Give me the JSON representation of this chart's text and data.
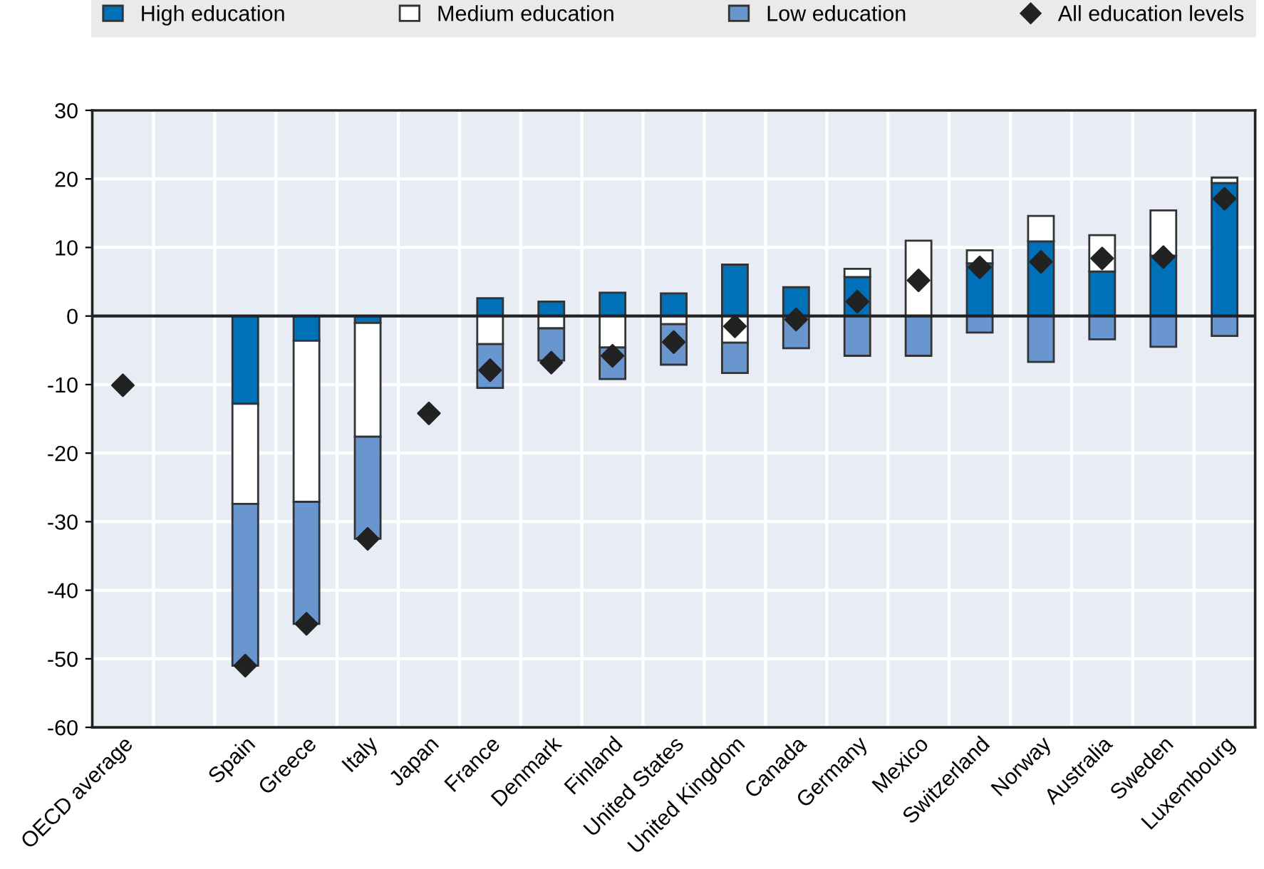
{
  "chart_data": {
    "type": "bar",
    "stacked": true,
    "categories": [
      "OECD average",
      null,
      "Spain",
      "Greece",
      "Italy",
      "Japan",
      "France",
      "Denmark",
      "Finland",
      "United States",
      "United Kingdom",
      "Canada",
      "Germany",
      "Mexico",
      "Switzerland",
      "Norway",
      "Australia",
      "Sweden",
      "Luxembourg"
    ],
    "series": [
      {
        "name": "High education",
        "color": "#0070b8",
        "values": [
          null,
          null,
          -12.8,
          -3.6,
          -1.0,
          null,
          2.6,
          2.1,
          3.4,
          3.3,
          7.5,
          4.2,
          5.7,
          null,
          7.7,
          10.9,
          6.5,
          8.8,
          19.4
        ]
      },
      {
        "name": "Medium education",
        "color": "#ffffff",
        "values": [
          null,
          null,
          -14.6,
          -23.5,
          -16.6,
          null,
          -4.1,
          -1.8,
          -4.6,
          -1.2,
          -3.9,
          null,
          1.2,
          11.0,
          1.9,
          3.7,
          5.3,
          6.6,
          0.8
        ]
      },
      {
        "name": "Low education",
        "color": "#6a96cf",
        "values": [
          null,
          null,
          -23.6,
          -17.8,
          -14.9,
          null,
          -6.4,
          -4.7,
          -4.6,
          -5.9,
          -4.4,
          -4.7,
          -5.8,
          -5.8,
          -2.4,
          -6.7,
          -3.4,
          -4.5,
          -2.9
        ]
      },
      {
        "name": "All education levels",
        "type": "scatter",
        "marker": "diamond",
        "color": "#222222",
        "values": [
          -10.1,
          null,
          -51.0,
          -44.9,
          -32.5,
          -14.2,
          -7.9,
          -6.8,
          -5.8,
          -3.8,
          -1.5,
          -0.5,
          2.1,
          5.2,
          7.1,
          7.9,
          8.4,
          8.6,
          17.1
        ]
      }
    ],
    "ylim": [
      -60,
      30
    ],
    "yticks": [
      -60,
      -50,
      -40,
      -30,
      -20,
      -10,
      0,
      10,
      20,
      30
    ],
    "grid": true,
    "legend": "top"
  }
}
